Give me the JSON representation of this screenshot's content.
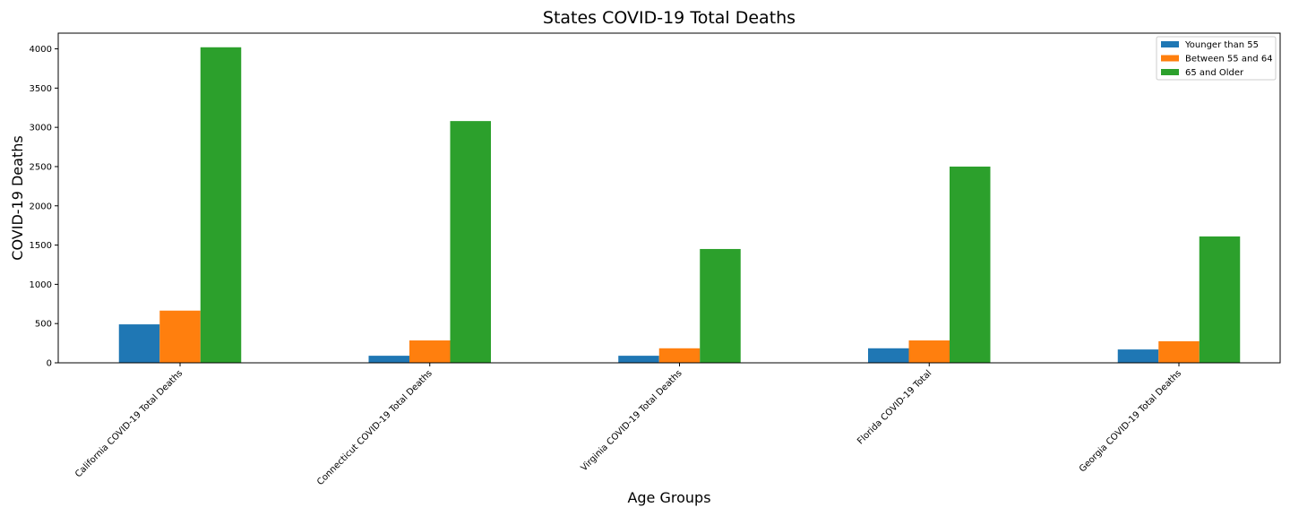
{
  "chart_data": {
    "type": "bar",
    "title": "States COVID-19 Total Deaths",
    "xlabel": "Age Groups",
    "ylabel": "COVID-19 Deaths",
    "categories": [
      "California COVID-19 Total Deaths",
      "Connecticut COVID-19 Total Deaths",
      "Virginia COVID-19 Total Deaths",
      "Florida COVID-19 Total",
      "Georgia COVID-19 Total Deaths"
    ],
    "series": [
      {
        "name": "Younger than 55",
        "color": "#1f77b4",
        "values": [
          490,
          90,
          90,
          185,
          170
        ]
      },
      {
        "name": "Between 55 and 64",
        "color": "#ff7f0e",
        "values": [
          665,
          285,
          185,
          285,
          275
        ]
      },
      {
        "name": "65 and Older",
        "color": "#2ca02c",
        "values": [
          4020,
          3080,
          1450,
          2500,
          1610
        ]
      }
    ],
    "ylim": [
      0,
      4200
    ],
    "yticks": [
      0,
      500,
      1000,
      1500,
      2000,
      2500,
      3000,
      3500,
      4000
    ],
    "ytick_labels": [
      "0",
      "500",
      "1000",
      "1500",
      "2000",
      "2500",
      "3000",
      "3500",
      "4000"
    ],
    "legend_position": "top-right",
    "grid": false
  }
}
